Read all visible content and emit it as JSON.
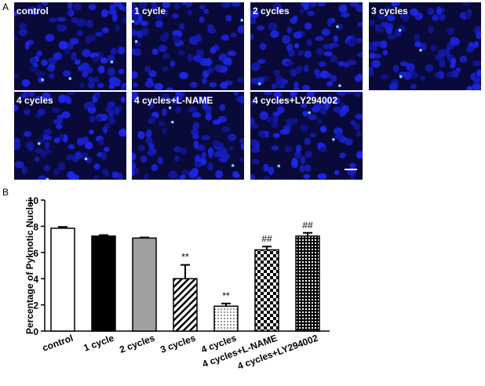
{
  "panel_a": {
    "label": "A",
    "images": [
      "control",
      "1 cycle",
      "2 cycles",
      "3 cycles",
      "4 cycles",
      "4 cycles+L-NAME",
      "4 cycles+LY294002"
    ]
  },
  "chart_data": {
    "type": "bar",
    "panel_label": "B",
    "ylabel": "Percentage of Pyknotic Nuclei",
    "categories": [
      "control",
      "1 cycle",
      "2 cycles",
      "3 cycles",
      "4 cycles",
      "4 cycles+L-NAME",
      "4 cycles+LY294002"
    ],
    "values": [
      7.85,
      7.25,
      7.1,
      4.0,
      1.9,
      6.2,
      7.25
    ],
    "errors": [
      0.1,
      0.08,
      0.05,
      1.05,
      0.2,
      0.25,
      0.25
    ],
    "value_annotations": [
      null,
      null,
      null,
      "**",
      "**",
      "##",
      "##"
    ],
    "ylim": [
      0,
      10
    ],
    "yticks": [
      0,
      2,
      4,
      6,
      8,
      10
    ]
  }
}
